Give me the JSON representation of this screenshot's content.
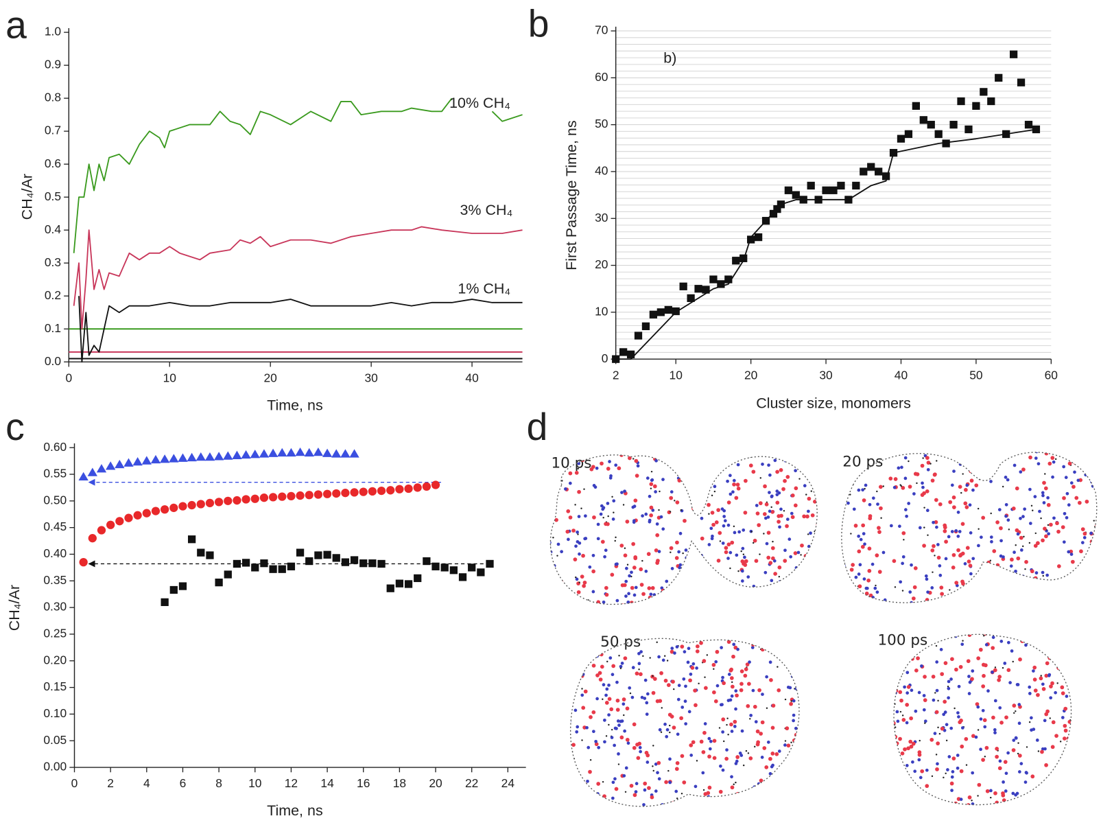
{
  "panels": [
    "a",
    "b",
    "c",
    "d"
  ],
  "chart_data": [
    {
      "type": "line",
      "xlabel": "Time, ns",
      "ylabel": "CH₄/Ar",
      "xlim": [
        0,
        45
      ],
      "xticks": [
        0,
        10,
        20,
        30,
        40
      ],
      "ylim": [
        0,
        1
      ],
      "yticks": [
        {
          "value": 0,
          "label": "0.0"
        },
        0.1,
        0.2,
        0.3,
        0.4,
        0.5,
        0.6,
        0.7,
        0.8,
        0.9,
        {
          "value": 1,
          "label": "1.0"
        }
      ],
      "series": [
        {
          "name": "10% CH₄",
          "color": "#3a9a1e",
          "x": [
            0.5,
            1,
            1.5,
            2,
            2.5,
            3,
            3.5,
            4,
            5,
            6,
            7,
            8,
            9,
            9.5,
            10,
            12,
            14,
            15,
            16,
            17,
            18,
            19,
            20,
            22,
            24,
            26,
            27,
            28,
            29,
            31,
            33,
            34,
            36,
            37,
            38,
            40,
            42,
            43,
            45
          ],
          "values": [
            0.33,
            0.5,
            0.5,
            0.6,
            0.52,
            0.6,
            0.55,
            0.62,
            0.63,
            0.6,
            0.66,
            0.7,
            0.68,
            0.65,
            0.7,
            0.72,
            0.72,
            0.76,
            0.73,
            0.72,
            0.69,
            0.76,
            0.75,
            0.72,
            0.76,
            0.73,
            0.79,
            0.79,
            0.75,
            0.76,
            0.76,
            0.77,
            0.76,
            0.76,
            0.8,
            null,
            0.76,
            0.73,
            0.75
          ]
        },
        {
          "name": "3% CH₄",
          "color": "#c8365a",
          "x": [
            0.5,
            1,
            1.3,
            1.7,
            2,
            2.5,
            3,
            3.5,
            4,
            5,
            6,
            7,
            8,
            9,
            10,
            11,
            12,
            13,
            14,
            16,
            17,
            18,
            19,
            20,
            22,
            24,
            26,
            28,
            30,
            32,
            34,
            35,
            37,
            40,
            43,
            45
          ],
          "values": [
            0.17,
            0.3,
            0.1,
            0.25,
            0.4,
            0.22,
            0.28,
            0.22,
            0.27,
            0.26,
            0.33,
            0.31,
            0.33,
            0.33,
            0.35,
            0.33,
            0.32,
            0.31,
            0.33,
            0.34,
            0.37,
            0.36,
            0.38,
            0.35,
            0.37,
            0.37,
            0.36,
            0.38,
            0.39,
            0.4,
            0.4,
            0.41,
            0.4,
            0.39,
            0.39,
            0.4
          ]
        },
        {
          "name": "1% CH₄",
          "color": "#111111",
          "x": [
            1,
            1.3,
            1.7,
            2,
            2.5,
            3,
            3.5,
            4,
            5,
            6,
            8,
            10,
            12,
            14,
            16,
            18,
            20,
            22,
            24,
            26,
            28,
            30,
            32,
            34,
            36,
            38,
            40,
            42,
            45
          ],
          "values": [
            0.2,
            0,
            0.15,
            0.02,
            0.05,
            0.03,
            0.1,
            0.17,
            0.15,
            0.17,
            0.17,
            0.18,
            0.17,
            0.17,
            0.18,
            0.18,
            0.18,
            0.19,
            0.17,
            0.17,
            0.17,
            0.17,
            0.18,
            0.17,
            0.18,
            0.18,
            0.19,
            0.18,
            0.18
          ]
        }
      ],
      "reference_lines": [
        {
          "value": 0.1,
          "color": "#3a9a1e"
        },
        {
          "value": 0.03,
          "color": "#c8365a"
        },
        {
          "value": 0.01,
          "color": "#111111"
        }
      ]
    },
    {
      "type": "scatter",
      "xlabel": "Cluster size, monomers",
      "ylabel": "First Passage Time, ns",
      "annotation": "b)",
      "xlim": [
        2,
        60
      ],
      "xticks": [
        2,
        10,
        20,
        30,
        40,
        50,
        60
      ],
      "ylim": [
        0,
        70
      ],
      "yticks": [
        0,
        10,
        20,
        30,
        40,
        50,
        60,
        70
      ],
      "grid": true,
      "yminor": 7,
      "series": [
        {
          "color": "#111111",
          "marker": "square",
          "x": [
            2,
            3,
            4,
            5,
            6,
            7,
            8,
            9,
            10,
            11,
            12,
            13,
            14,
            15,
            16,
            17,
            18,
            19,
            20,
            21,
            22,
            23,
            23.5,
            24,
            25,
            26,
            27,
            28,
            29,
            30,
            31,
            32,
            33,
            34,
            35,
            36,
            37,
            38,
            39,
            40,
            41,
            42,
            43,
            44,
            45,
            46,
            47,
            48,
            49,
            50,
            51,
            52,
            53,
            54,
            55,
            56,
            57,
            58
          ],
          "values": [
            0,
            1.5,
            1,
            5,
            7,
            9.5,
            10,
            10.5,
            10.2,
            15.5,
            13,
            15,
            14.8,
            17,
            16,
            17,
            21,
            21.5,
            25.5,
            26,
            29.5,
            31,
            32,
            33,
            36,
            35,
            34,
            37,
            34,
            36,
            36,
            37,
            34,
            37,
            40,
            41,
            40,
            39,
            44,
            47,
            48,
            54,
            51,
            50,
            48,
            46,
            50,
            55,
            49,
            54,
            57,
            55,
            60,
            48,
            65,
            59,
            50,
            49
          ]
        },
        {
          "color": "#111111",
          "x": [
            2,
            4,
            10,
            15,
            17,
            19,
            20,
            24,
            26,
            33,
            36,
            38,
            39,
            45,
            50,
            58
          ],
          "values": [
            0,
            0,
            10,
            15,
            16,
            21,
            26,
            33,
            34,
            34,
            37,
            38,
            44,
            46,
            47,
            49
          ]
        }
      ]
    },
    {
      "type": "scatter",
      "xlabel": "Time, ns",
      "ylabel": "CH₄/Ar",
      "xlim": [
        0,
        25
      ],
      "xticks": [
        0,
        2,
        4,
        6,
        8,
        10,
        12,
        14,
        16,
        18,
        20,
        22,
        24
      ],
      "ylim": [
        0,
        0.6
      ],
      "yticks": [
        {
          "value": 0,
          "label": "0.00"
        },
        {
          "value": 0.05,
          "label": "0.05"
        },
        {
          "value": 0.1,
          "label": "0.10"
        },
        {
          "value": 0.15,
          "label": "0.15"
        },
        {
          "value": 0.2,
          "label": "0.20"
        },
        {
          "value": 0.25,
          "label": "0.25"
        },
        {
          "value": 0.3,
          "label": "0.30"
        },
        {
          "value": 0.35,
          "label": "0.35"
        },
        {
          "value": 0.4,
          "label": "0.40"
        },
        {
          "value": 0.45,
          "label": "0.45"
        },
        {
          "value": 0.5,
          "label": "0.50"
        },
        {
          "value": 0.55,
          "label": "0.55"
        },
        {
          "value": 0.6,
          "label": "0.60"
        }
      ],
      "series": [
        {
          "color": "#3b4fe0",
          "marker": "triangle",
          "x": [
            0.5,
            1,
            1.5,
            2,
            2.5,
            3,
            3.5,
            4,
            4.5,
            5,
            5.5,
            6,
            6.5,
            7,
            7.5,
            8,
            8.5,
            9,
            9.5,
            10,
            10.5,
            11,
            11.5,
            12,
            12.5,
            13,
            13.5,
            14,
            14.5,
            15,
            15.5
          ],
          "values": [
            0.545,
            0.553,
            0.56,
            0.565,
            0.568,
            0.571,
            0.573,
            0.575,
            0.577,
            0.578,
            0.579,
            0.58,
            0.581,
            0.582,
            0.582,
            0.583,
            0.584,
            0.585,
            0.586,
            0.587,
            0.588,
            0.589,
            0.59,
            0.59,
            0.591,
            0.59,
            0.591,
            0.589,
            0.588,
            0.588,
            0.588
          ]
        },
        {
          "color": "#e8282a",
          "marker": "circle",
          "x": [
            0.5,
            1,
            1.5,
            2,
            2.5,
            3,
            3.5,
            4,
            4.5,
            5,
            5.5,
            6,
            6.5,
            7,
            7.5,
            8,
            8.5,
            9,
            9.5,
            10,
            10.5,
            11,
            11.5,
            12,
            12.5,
            13,
            13.5,
            14,
            14.5,
            15,
            15.5,
            16,
            16.5,
            17,
            17.5,
            18,
            18.5,
            19,
            19.5,
            20
          ],
          "values": [
            0.385,
            0.43,
            0.445,
            0.455,
            0.462,
            0.468,
            0.473,
            0.477,
            0.481,
            0.484,
            0.487,
            0.49,
            0.492,
            0.494,
            0.496,
            0.498,
            0.5,
            0.501,
            0.503,
            0.504,
            0.506,
            0.507,
            0.508,
            0.509,
            0.51,
            0.511,
            0.512,
            0.513,
            0.514,
            0.515,
            0.516,
            0.517,
            0.518,
            0.519,
            0.52,
            0.522,
            0.523,
            0.525,
            0.527,
            0.53
          ]
        },
        {
          "color": "#111111",
          "marker": "square",
          "x": [
            5,
            5.5,
            6,
            6.5,
            7,
            7.5,
            8,
            8.5,
            9,
            9.5,
            10,
            10.5,
            11,
            11.5,
            12,
            12.5,
            13,
            13.5,
            14,
            14.5,
            15,
            15.5,
            16,
            16.5,
            17,
            17.5,
            18,
            18.5,
            19,
            19.5,
            20,
            20.5,
            21,
            21.5,
            22,
            22.5,
            23
          ],
          "values": [
            0.31,
            0.333,
            0.34,
            0.428,
            0.403,
            0.398,
            0.347,
            0.362,
            0.382,
            0.384,
            0.375,
            0.383,
            0.372,
            0.372,
            0.377,
            0.403,
            0.387,
            0.398,
            0.399,
            0.393,
            0.385,
            0.389,
            0.383,
            0.383,
            0.382,
            0.336,
            0.345,
            0.344,
            0.355,
            0.387,
            0.377,
            0.375,
            0.37,
            0.357,
            0.375,
            0.366,
            0.382
          ]
        }
      ],
      "arrows": [
        {
          "y": 0.535,
          "x": [
            20.3,
            0.8
          ],
          "color": "#3b4fe0"
        },
        {
          "y": 0.382,
          "x": [
            23,
            0.8
          ],
          "color": "#111111"
        }
      ]
    }
  ],
  "snapshots": [
    "10 ps",
    "20 ps",
    "50 ps",
    "100 ps"
  ]
}
